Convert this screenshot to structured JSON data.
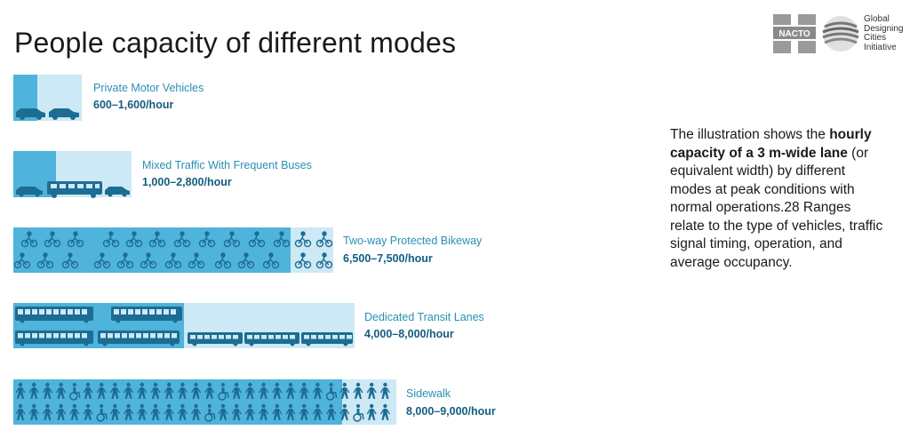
{
  "title": "People capacity of different modes",
  "logo": {
    "nacto": "NACTO",
    "gdci_lines": [
      "Global",
      "Designing",
      "Cities",
      "Initiative"
    ]
  },
  "modes": [
    {
      "name": "Private Motor Vehicles",
      "capacity": "600–1,600/hour"
    },
    {
      "name": "Mixed Traffic With Frequent Buses",
      "capacity": "1,000–2,800/hour"
    },
    {
      "name": "Two-way Protected Bikeway",
      "capacity": "6,500–7,500/hour"
    },
    {
      "name": "Dedicated Transit Lanes",
      "capacity": "4,000–8,000/hour"
    },
    {
      "name": "Sidewalk",
      "capacity": "8,000–9,000/hour"
    }
  ],
  "description": {
    "part1": "The illustration shows the ",
    "bold": "hourly capacity of a 3 m-wide lane",
    "part2": " (or equivalent width) by different modes at peak conditions with normal operations.28 Ranges relate to the type of vehicles, traffic signal timing, operation, and average occupancy."
  },
  "colors": {
    "dark_band": "#4fb3dc",
    "light_band": "#cde9f5",
    "icon": "#1d6d93",
    "label": "#2a8fb3"
  }
}
